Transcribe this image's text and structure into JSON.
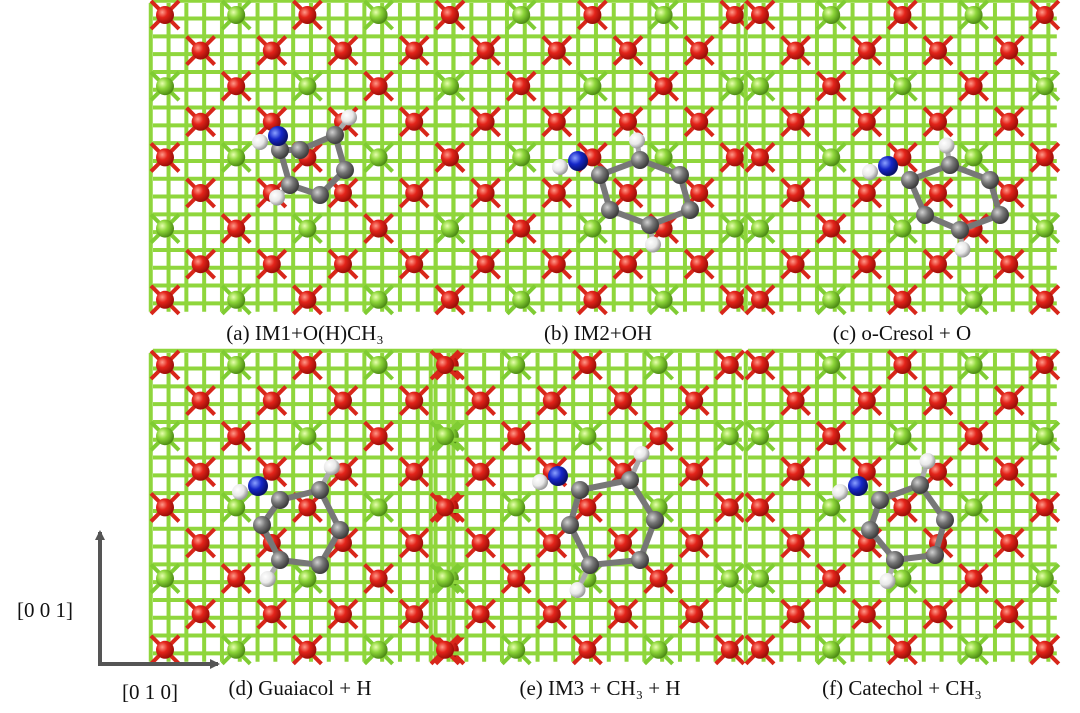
{
  "panels": [
    {
      "caption": "(a) IM1+O(H)CH₃"
    },
    {
      "caption": "(b) IM2+OH"
    },
    {
      "caption": "(c) o-Cresol + O"
    },
    {
      "caption": "(d) Guaiacol + H"
    },
    {
      "caption": "(e) IM3 + CH₃ + H"
    },
    {
      "caption": "(f) Catechol + CH₃"
    }
  ],
  "axes": {
    "vertical": "[0 0 1]",
    "horizontal": "[0 1 0]"
  }
}
